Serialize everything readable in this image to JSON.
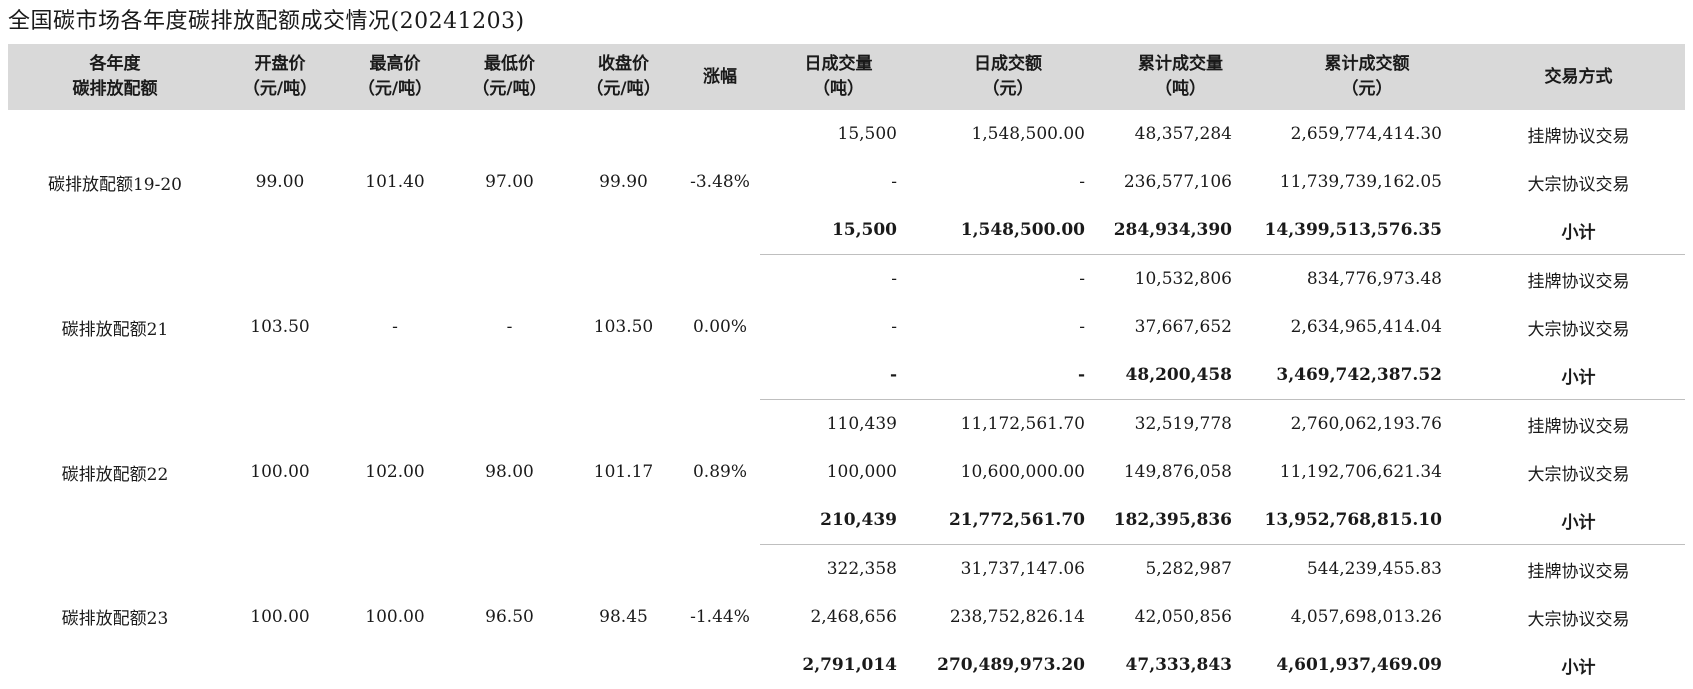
{
  "title": "全国碳市场各年度碳排放配额成交情况(20241203)",
  "headers": [
    [
      "各年度",
      "碳排放配额"
    ],
    [
      "开盘价",
      "（元/吨）"
    ],
    [
      "最高价",
      "（元/吨）"
    ],
    [
      "最低价",
      "（元/吨）"
    ],
    [
      "收盘价",
      "（元/吨）"
    ],
    [
      "涨幅"
    ],
    [
      "日成交量",
      "（吨）"
    ],
    [
      "日成交额",
      "（元）"
    ],
    [
      "累计成交量",
      "（吨）"
    ],
    [
      "累计成交额",
      "（元）"
    ],
    [
      "交易方式"
    ]
  ],
  "groups": [
    {
      "name": "碳排放配额19-20",
      "open": "99.00",
      "high": "101.40",
      "low": "97.00",
      "close": "99.90",
      "change": "-3.48%",
      "rows": [
        {
          "daily_volume": "15,500",
          "daily_amount": "1,548,500.00",
          "cum_volume": "48,357,284",
          "cum_amount": "2,659,774,414.30",
          "method": "挂牌协议交易"
        },
        {
          "daily_volume": "-",
          "daily_amount": "-",
          "cum_volume": "236,577,106",
          "cum_amount": "11,739,739,162.05",
          "method": "大宗协议交易"
        },
        {
          "daily_volume": "15,500",
          "daily_amount": "1,548,500.00",
          "cum_volume": "284,934,390",
          "cum_amount": "14,399,513,576.35",
          "method": "小计"
        }
      ]
    },
    {
      "name": "碳排放配额21",
      "open": "103.50",
      "high": "-",
      "low": "-",
      "close": "103.50",
      "change": "0.00%",
      "rows": [
        {
          "daily_volume": "-",
          "daily_amount": "-",
          "cum_volume": "10,532,806",
          "cum_amount": "834,776,973.48",
          "method": "挂牌协议交易"
        },
        {
          "daily_volume": "-",
          "daily_amount": "-",
          "cum_volume": "37,667,652",
          "cum_amount": "2,634,965,414.04",
          "method": "大宗协议交易"
        },
        {
          "daily_volume": "-",
          "daily_amount": "-",
          "cum_volume": "48,200,458",
          "cum_amount": "3,469,742,387.52",
          "method": "小计"
        }
      ]
    },
    {
      "name": "碳排放配额22",
      "open": "100.00",
      "high": "102.00",
      "low": "98.00",
      "close": "101.17",
      "change": "0.89%",
      "rows": [
        {
          "daily_volume": "110,439",
          "daily_amount": "11,172,561.70",
          "cum_volume": "32,519,778",
          "cum_amount": "2,760,062,193.76",
          "method": "挂牌协议交易"
        },
        {
          "daily_volume": "100,000",
          "daily_amount": "10,600,000.00",
          "cum_volume": "149,876,058",
          "cum_amount": "11,192,706,621.34",
          "method": "大宗协议交易"
        },
        {
          "daily_volume": "210,439",
          "daily_amount": "21,772,561.70",
          "cum_volume": "182,395,836",
          "cum_amount": "13,952,768,815.10",
          "method": "小计"
        }
      ]
    },
    {
      "name": "碳排放配额23",
      "open": "100.00",
      "high": "100.00",
      "low": "96.50",
      "close": "98.45",
      "change": "-1.44%",
      "rows": [
        {
          "daily_volume": "322,358",
          "daily_amount": "31,737,147.06",
          "cum_volume": "5,282,987",
          "cum_amount": "544,239,455.83",
          "method": "挂牌协议交易"
        },
        {
          "daily_volume": "2,468,656",
          "daily_amount": "238,752,826.14",
          "cum_volume": "42,050,856",
          "cum_amount": "4,057,698,013.26",
          "method": "大宗协议交易"
        },
        {
          "daily_volume": "2,791,014",
          "daily_amount": "270,489,973.20",
          "cum_volume": "47,333,843",
          "cum_amount": "4,601,937,469.09",
          "method": "小计"
        }
      ]
    }
  ]
}
